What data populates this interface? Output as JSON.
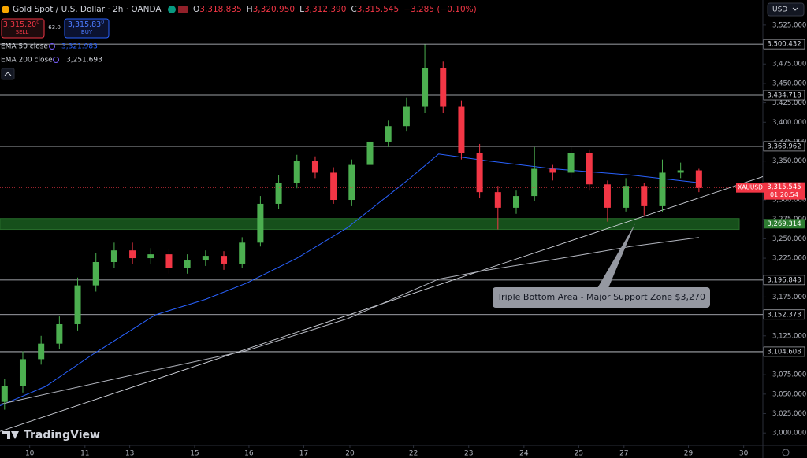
{
  "header": {
    "symbol": "Gold Spot / U.S. Dollar · 2h · OANDA",
    "ohlc": [
      {
        "label": "O",
        "value": "3,318.835"
      },
      {
        "label": "H",
        "value": "3,320.950"
      },
      {
        "label": "L",
        "value": "3,312.390"
      },
      {
        "label": "C",
        "value": "3,315.545"
      }
    ],
    "change": "−3.285 (−0.10%)",
    "sell": {
      "price": "3,315.20",
      "small": "0",
      "label": "SELL"
    },
    "spread": "63.0",
    "buy": {
      "price": "3,315.83",
      "small": "0",
      "label": "BUY"
    },
    "currency": "USD",
    "logo": "TradingView"
  },
  "chart_data": {
    "type": "candlestick",
    "up_color": "#4caf50",
    "down_color": "#f23645",
    "xlim": [
      0,
      167
    ],
    "xticks": [
      {
        "value": 6.5,
        "label": "10"
      },
      {
        "value": 18.6,
        "label": "11"
      },
      {
        "value": 28.4,
        "label": "13"
      },
      {
        "value": 42.6,
        "label": "15"
      },
      {
        "value": 54.5,
        "label": "16"
      },
      {
        "value": 66.5,
        "label": "17"
      },
      {
        "value": 76.6,
        "label": "20"
      },
      {
        "value": 90.5,
        "label": "22"
      },
      {
        "value": 102.6,
        "label": "23"
      },
      {
        "value": 114.7,
        "label": "24"
      },
      {
        "value": 126.7,
        "label": "25"
      },
      {
        "value": 136.6,
        "label": "27"
      },
      {
        "value": 150.7,
        "label": "29"
      },
      {
        "value": 162.8,
        "label": "30"
      }
    ],
    "ylim": [
      2984,
      3535
    ],
    "yticks": [
      {
        "value": 3525,
        "label": "3,525.000"
      },
      {
        "value": 3475,
        "label": "3,475.000"
      },
      {
        "value": 3450,
        "label": "3,450.000"
      },
      {
        "value": 3425,
        "label": "3,425.000"
      },
      {
        "value": 3400,
        "label": "3,400.000"
      },
      {
        "value": 3375,
        "label": "3,375.000"
      },
      {
        "value": 3350,
        "label": "3,350.000"
      },
      {
        "value": 3300,
        "label": "3,300.000"
      },
      {
        "value": 3275,
        "label": "3,275.000"
      },
      {
        "value": 3250,
        "label": "3,250.000"
      },
      {
        "value": 3225,
        "label": "3,225.000"
      },
      {
        "value": 3175,
        "label": "3,175.000"
      },
      {
        "value": 3125,
        "label": "3,125.000"
      },
      {
        "value": 3075,
        "label": "3,075.000"
      },
      {
        "value": 3050,
        "label": "3,050.000"
      },
      {
        "value": 3025,
        "label": "3,025.000"
      },
      {
        "value": 3000,
        "label": "3,000.000"
      }
    ],
    "x": [
      1,
      5,
      9,
      13,
      17,
      21,
      25,
      29,
      33,
      37,
      41,
      45,
      49,
      53,
      57,
      61,
      65,
      69,
      73,
      77,
      81,
      85,
      89,
      93,
      97,
      101,
      105,
      109,
      113,
      117,
      121,
      125,
      129,
      133,
      137,
      141,
      145,
      149,
      153
    ],
    "open": [
      3040,
      3060,
      3095,
      3115,
      3140,
      3190,
      3220,
      3235,
      3225,
      3230,
      3212,
      3222,
      3228,
      3218,
      3245,
      3295,
      3322,
      3350,
      3335,
      3300,
      3345,
      3375,
      3395,
      3420,
      3470,
      3420,
      3360,
      3310,
      3290,
      3305,
      3340,
      3335,
      3360,
      3320,
      3290,
      3318,
      3292,
      3335,
      3338
    ],
    "high": [
      3070,
      3105,
      3125,
      3150,
      3200,
      3232,
      3245,
      3245,
      3238,
      3236,
      3230,
      3235,
      3234,
      3252,
      3305,
      3332,
      3358,
      3356,
      3342,
      3352,
      3385,
      3402,
      3432,
      3500,
      3478,
      3428,
      3372,
      3318,
      3312,
      3368,
      3345,
      3368,
      3365,
      3325,
      3328,
      3322,
      3352,
      3348,
      3340
    ],
    "low": [
      3030,
      3052,
      3088,
      3108,
      3132,
      3182,
      3212,
      3218,
      3218,
      3205,
      3205,
      3215,
      3210,
      3212,
      3240,
      3288,
      3315,
      3328,
      3295,
      3292,
      3338,
      3368,
      3388,
      3412,
      3412,
      3352,
      3302,
      3262,
      3282,
      3298,
      3325,
      3328,
      3312,
      3272,
      3285,
      3280,
      3285,
      3328,
      3310
    ],
    "close": [
      3060,
      3095,
      3115,
      3140,
      3190,
      3220,
      3235,
      3225,
      3230,
      3212,
      3222,
      3228,
      3218,
      3245,
      3295,
      3322,
      3350,
      3335,
      3300,
      3345,
      3375,
      3395,
      3420,
      3470,
      3420,
      3360,
      3310,
      3290,
      3305,
      3340,
      3335,
      3360,
      3320,
      3290,
      3318,
      3292,
      3335,
      3338,
      3315.545
    ],
    "ema": [
      {
        "name": "EMA 50 close",
        "legend_value": "3,321.983",
        "color": "#2962ff",
        "x": [
          0,
          10,
          20,
          34,
          45,
          54,
          65,
          76,
          90,
          96,
          107,
          121,
          138,
          153
        ],
        "values": [
          3035,
          3060,
          3100,
          3152,
          3172,
          3193,
          3225,
          3264,
          3329,
          3359,
          3350,
          3340,
          3332,
          3321.983
        ]
      },
      {
        "name": "EMA 200 close",
        "legend_value": "3,251.693",
        "color": "#b2b5be",
        "x": [
          0,
          34,
          54,
          76,
          96,
          107,
          121,
          138,
          153
        ],
        "values": [
          3037,
          3081,
          3106,
          3147,
          3198,
          3210,
          3223,
          3240,
          3251.693
        ]
      }
    ],
    "trendline": {
      "x": [
        0,
        167
      ],
      "values": [
        3002,
        3330
      ]
    },
    "levels": [
      {
        "value": 3500.432,
        "label": "3,500.432"
      },
      {
        "value": 3434.718,
        "label": "3,434.718"
      },
      {
        "value": 3368.962,
        "label": "3,368.962"
      },
      {
        "value": 3196.843,
        "label": "3,196.843"
      },
      {
        "value": 3152.373,
        "label": "3,152.373"
      },
      {
        "value": 3104.608,
        "label": "3,104.608"
      }
    ],
    "support_zone": {
      "low": 3262,
      "high": 3276,
      "price": {
        "value": 3269.314,
        "label": "3,269.314"
      }
    },
    "last": {
      "symbol": "XAUUSD",
      "price": {
        "value": 3315.545,
        "label": "3,315.545"
      },
      "countdown": "01:20:54"
    },
    "annotation": "Triple Bottom Area - Major Support Zone $3,270"
  }
}
